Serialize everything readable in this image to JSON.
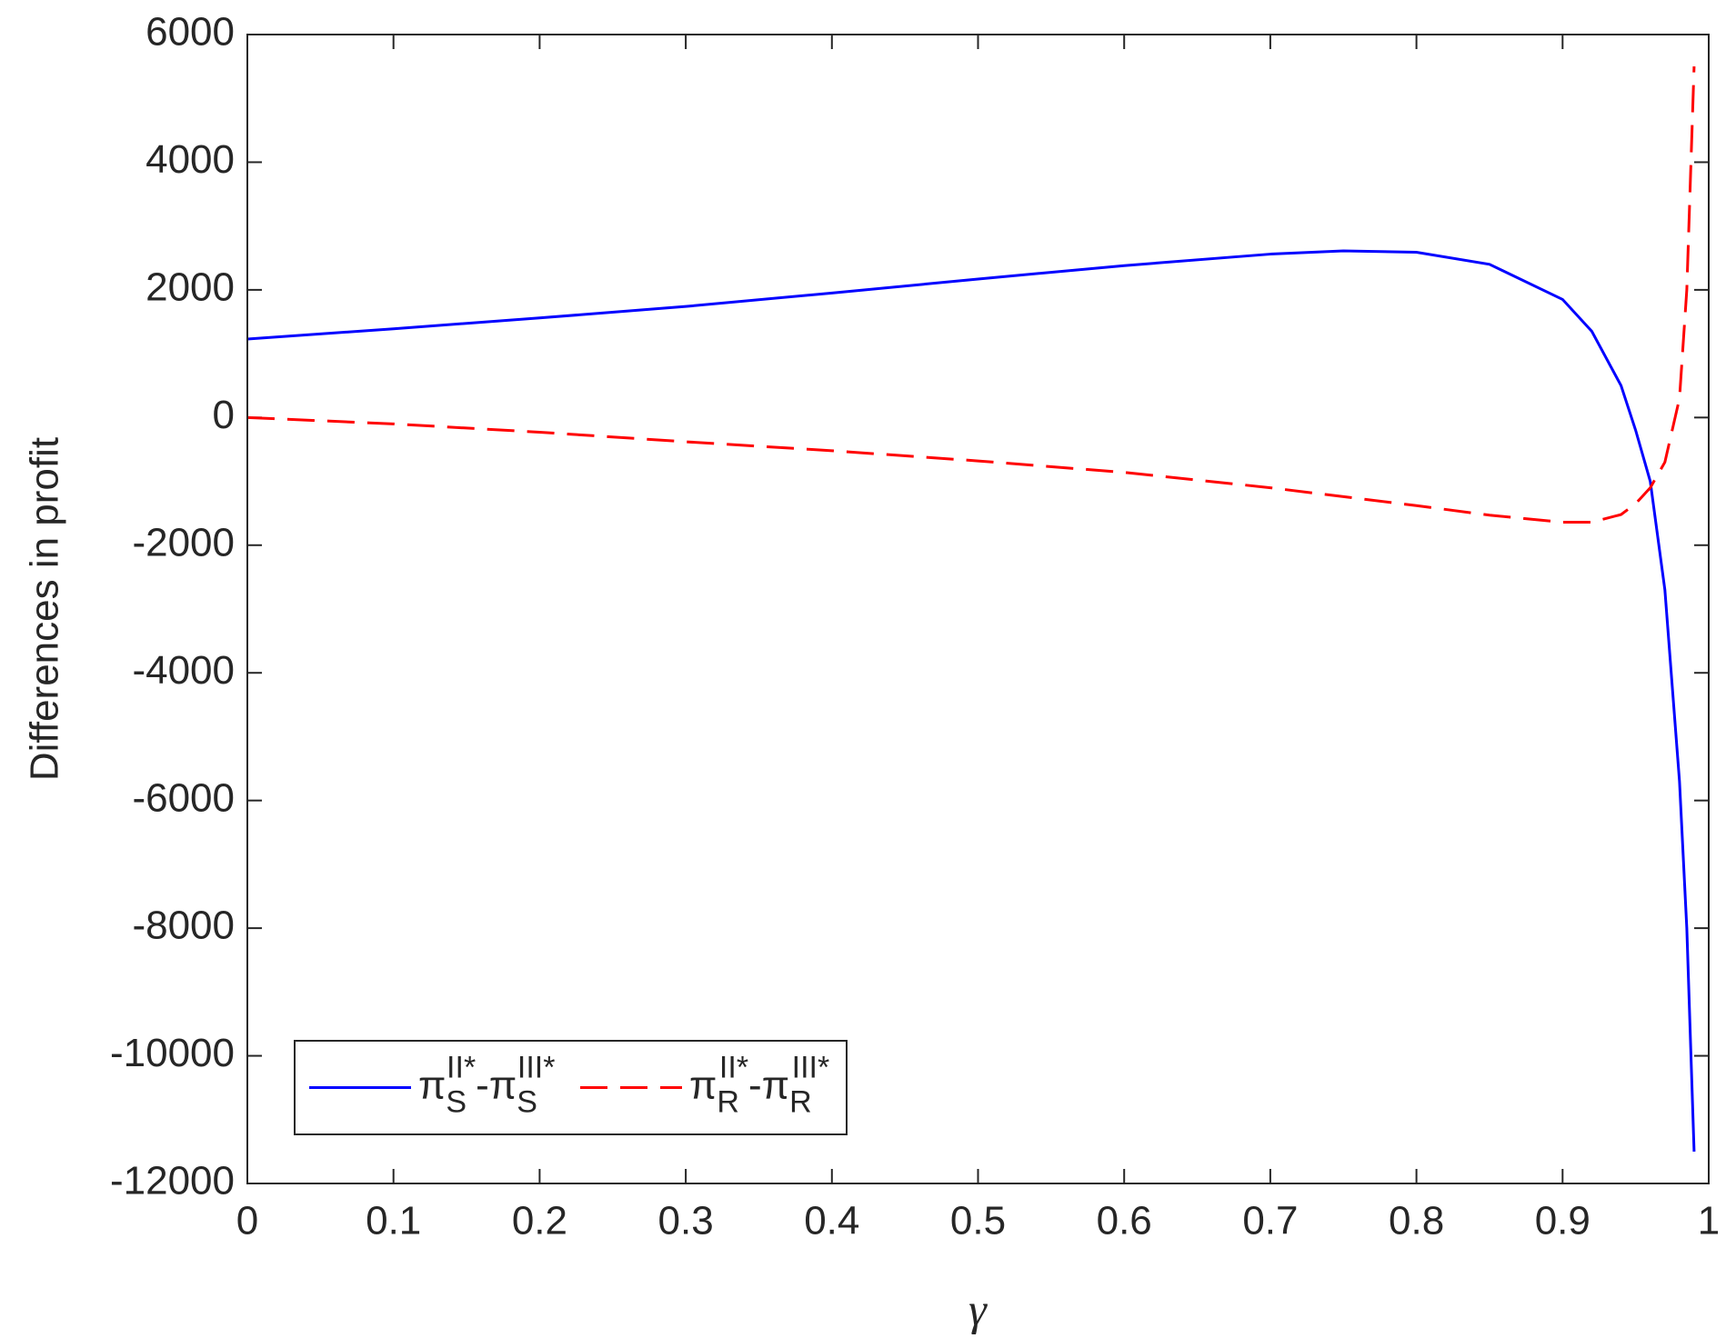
{
  "chart_data": {
    "type": "line",
    "x_label": "γ",
    "y_label": "Differences in profit",
    "x": [
      0,
      0.1,
      0.2,
      0.3,
      0.4,
      0.5,
      0.6,
      0.7,
      0.75,
      0.8,
      0.85,
      0.9,
      0.92,
      0.94,
      0.95,
      0.96,
      0.97,
      0.98,
      0.985,
      0.99
    ],
    "series": [
      {
        "name": "π_S^{II*}-π_S^{III*}",
        "color": "#0000ff",
        "dash": "solid",
        "values": [
          1230,
          1390,
          1560,
          1740,
          1950,
          2170,
          2380,
          2560,
          2610,
          2590,
          2400,
          1850,
          1350,
          500,
          -200,
          -1000,
          -2700,
          -5700,
          -8000,
          -11500
        ]
      },
      {
        "name": "π_R^{II*}-π_R^{III*}",
        "color": "#ff0000",
        "dash": "dashed",
        "values": [
          0,
          -100,
          -230,
          -380,
          -520,
          -680,
          -860,
          -1100,
          -1240,
          -1380,
          -1530,
          -1640,
          -1640,
          -1520,
          -1350,
          -1100,
          -700,
          300,
          2000,
          5500
        ]
      }
    ],
    "xlim": [
      0,
      1
    ],
    "xticks": [
      0,
      0.1,
      0.2,
      0.3,
      0.4,
      0.5,
      0.6,
      0.7,
      0.8,
      0.9,
      1
    ],
    "ylim": [
      -12000,
      6000
    ],
    "yticks": [
      -12000,
      -10000,
      -8000,
      -6000,
      -4000,
      -2000,
      0,
      2000,
      4000,
      6000
    ],
    "grid": false,
    "legend": "lower left"
  }
}
